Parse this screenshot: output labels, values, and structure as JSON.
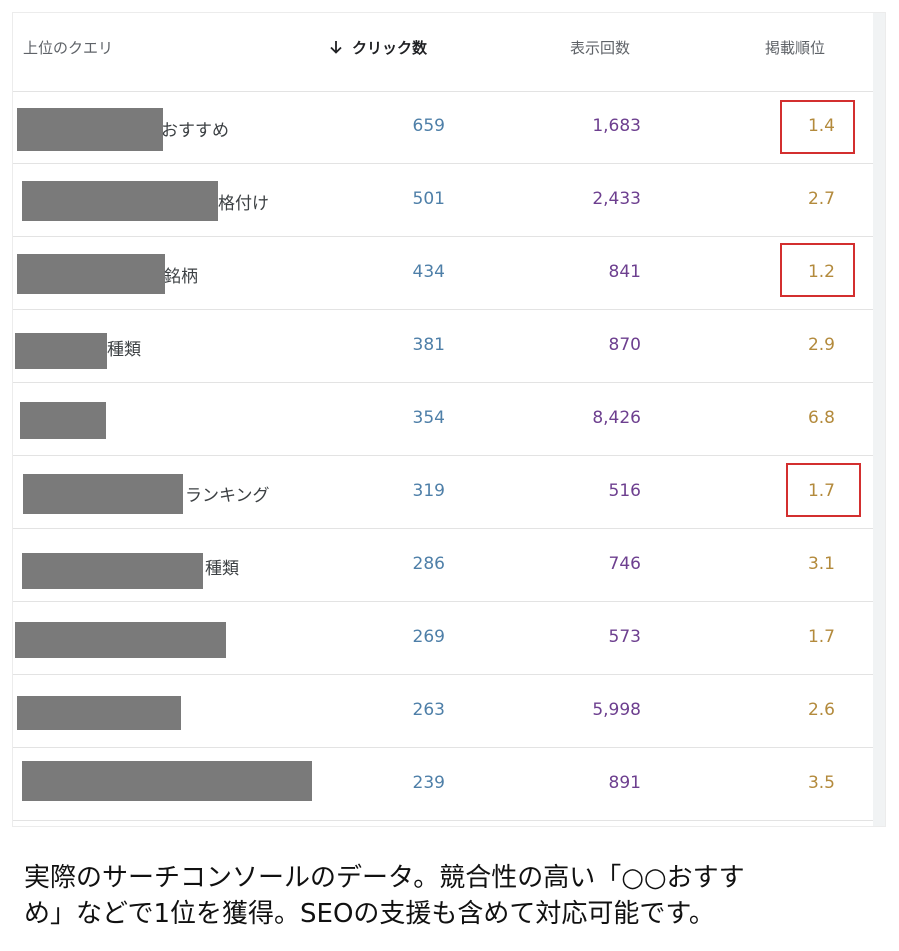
{
  "table": {
    "headers": {
      "query": "上位のクエリ",
      "clicks": "クリック数",
      "impressions": "表示回数",
      "position": "掲載順位"
    },
    "rows": [
      {
        "query_suffix": "おすすめ",
        "clicks": "659",
        "impressions": "1,683",
        "position": "1.4",
        "highlighted": true
      },
      {
        "query_suffix": "格付け",
        "clicks": "501",
        "impressions": "2,433",
        "position": "2.7",
        "highlighted": false
      },
      {
        "query_suffix": "銘柄",
        "clicks": "434",
        "impressions": "841",
        "position": "1.2",
        "highlighted": true
      },
      {
        "query_suffix": "種類",
        "clicks": "381",
        "impressions": "870",
        "position": "2.9",
        "highlighted": false
      },
      {
        "query_suffix": "",
        "clicks": "354",
        "impressions": "8,426",
        "position": "6.8",
        "highlighted": false
      },
      {
        "query_suffix": "ランキング",
        "clicks": "319",
        "impressions": "516",
        "position": "1.7",
        "highlighted": true
      },
      {
        "query_suffix": "種類",
        "clicks": "286",
        "impressions": "746",
        "position": "3.1",
        "highlighted": false
      },
      {
        "query_suffix": "",
        "clicks": "269",
        "impressions": "573",
        "position": "1.7",
        "highlighted": false
      },
      {
        "query_suffix": "",
        "clicks": "263",
        "impressions": "5,998",
        "position": "2.6",
        "highlighted": false
      },
      {
        "query_suffix": "",
        "clicks": "239",
        "impressions": "891",
        "position": "3.5",
        "highlighted": false
      }
    ]
  },
  "caption": {
    "line1": "実際のサーチコンソールのデータ。競合性の高い「○○おすす",
    "line2": "め」などで1位を獲得。SEOの支援も含めて対応可能です。"
  },
  "colors": {
    "clicks": "#4e7fa8",
    "impressions": "#6d3f8f",
    "position": "#b38a3c",
    "highlight_border": "#d32f2f",
    "redaction": "#7a7a7a"
  },
  "icons": {
    "sort": "arrow-down-icon"
  }
}
